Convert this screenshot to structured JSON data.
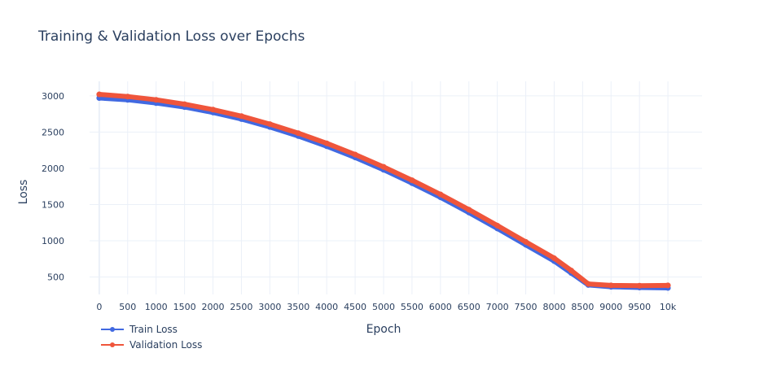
{
  "chart_data": {
    "type": "line",
    "title": "Training & Validation Loss over Epochs",
    "xlabel": "Epoch",
    "ylabel": "Loss",
    "xlim": [
      -170,
      10600
    ],
    "ylim": [
      260,
      3200
    ],
    "x_ticks": [
      0,
      500,
      1000,
      1500,
      2000,
      2500,
      3000,
      3500,
      4000,
      4500,
      5000,
      5500,
      6000,
      6500,
      7000,
      7500,
      8000,
      8500,
      9000,
      9500,
      10000
    ],
    "x_tick_labels": [
      "0",
      "500",
      "1000",
      "1500",
      "2000",
      "2500",
      "3000",
      "3500",
      "4000",
      "4500",
      "5000",
      "5500",
      "6000",
      "6500",
      "7000",
      "7500",
      "8000",
      "8500",
      "9000",
      "9500",
      "10k"
    ],
    "y_ticks": [
      500,
      1000,
      1500,
      2000,
      2500,
      3000
    ],
    "y_tick_labels": [
      "500",
      "1000",
      "1500",
      "2000",
      "2500",
      "3000"
    ],
    "grid": true,
    "legend_position": "bottom-left",
    "series": [
      {
        "name": "Train Loss",
        "color": "#4169e1",
        "x": [
          0,
          500,
          1000,
          1500,
          2000,
          2500,
          3000,
          3500,
          4000,
          4500,
          5000,
          5500,
          6000,
          6500,
          7000,
          7500,
          8000,
          8300,
          8600,
          9000,
          9500,
          10000
        ],
        "y": [
          2970,
          2945,
          2900,
          2845,
          2770,
          2680,
          2570,
          2445,
          2305,
          2150,
          1980,
          1795,
          1600,
          1390,
          1170,
          945,
          720,
          555,
          390,
          365,
          355,
          350
        ]
      },
      {
        "name": "Validation Loss",
        "color": "#ef553b",
        "x": [
          0,
          500,
          1000,
          1500,
          2000,
          2500,
          3000,
          3500,
          4000,
          4500,
          5000,
          5500,
          6000,
          6500,
          7000,
          7500,
          8000,
          8300,
          8600,
          9000,
          9500,
          10000
        ],
        "y": [
          3020,
          2990,
          2945,
          2885,
          2810,
          2720,
          2610,
          2485,
          2345,
          2190,
          2020,
          1835,
          1640,
          1430,
          1210,
          985,
          760,
          590,
          405,
          385,
          380,
          385
        ]
      }
    ]
  }
}
